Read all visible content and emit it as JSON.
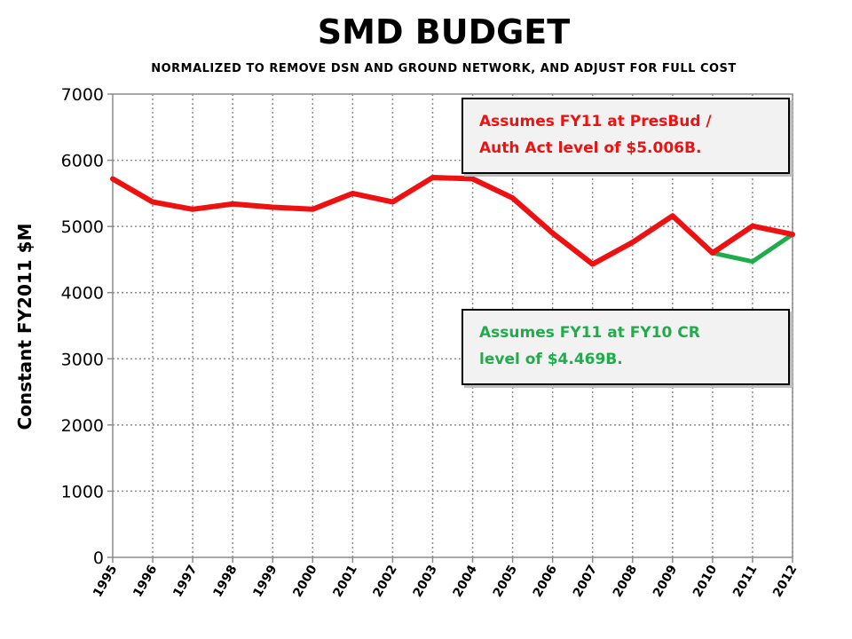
{
  "chart_data": {
    "type": "line",
    "title": "SMD BUDGET",
    "subtitle": "NORMALIZED TO REMOVE DSN AND GROUND NETWORK, AND ADJUST FOR FULL COST",
    "xlabel": "",
    "ylabel": "Constant FY2011 $M",
    "ylim": [
      0,
      7000
    ],
    "yticks": [
      "0",
      "1000",
      "2000",
      "3000",
      "4000",
      "5000",
      "6000",
      "7000"
    ],
    "categories": [
      "1995",
      "1996",
      "1997",
      "1998",
      "1999",
      "2000",
      "2001",
      "2002",
      "2003",
      "2004",
      "2005",
      "2006",
      "2007",
      "2008",
      "2009",
      "2010",
      "2011",
      "2012"
    ],
    "grid": true,
    "series": [
      {
        "color": "#ee1111",
        "values": [
          5720,
          5370,
          5260,
          5340,
          5290,
          5260,
          5500,
          5370,
          5740,
          5720,
          5430,
          4900,
          4430,
          4760,
          5160,
          4600,
          5006,
          4880
        ]
      },
      {
        "color": "#1fad4c",
        "values": [
          null,
          null,
          null,
          null,
          null,
          null,
          null,
          null,
          null,
          null,
          null,
          null,
          null,
          null,
          null,
          4600,
          4469,
          4880
        ]
      }
    ],
    "annotations": [
      {
        "lines": [
          "Assumes FY11 at PresBud /",
          "Auth Act level of $5.006B."
        ],
        "color": "#ee1111"
      },
      {
        "lines": [
          "Assumes FY11 at FY10 CR",
          "level of $4.469B."
        ],
        "color": "#1fad4c"
      }
    ]
  }
}
